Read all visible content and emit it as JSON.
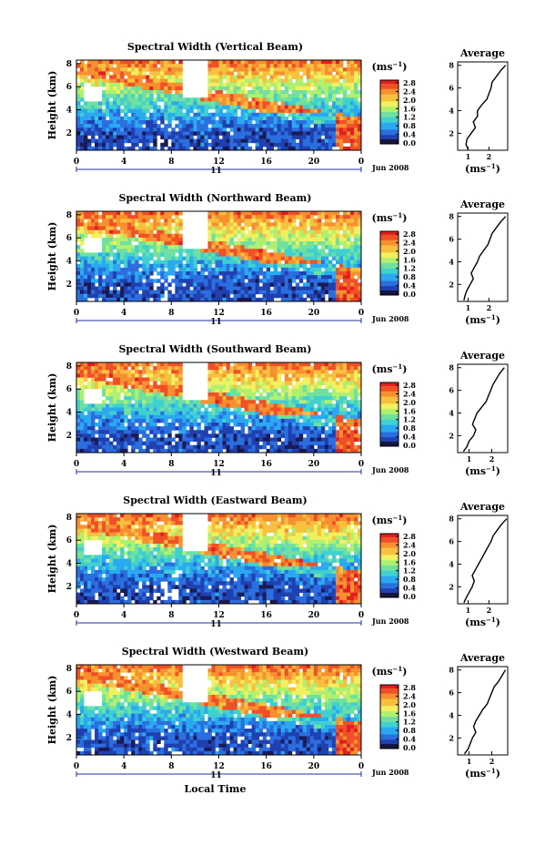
{
  "chart_data": [
    {
      "type": "heatmap",
      "title": "Spectral Width (Vertical Beam)",
      "ylabel": "Height (km)",
      "x_ticks": [
        "0",
        "4",
        "8",
        "12",
        "16",
        "20",
        "0"
      ],
      "y_ticks": [
        "2",
        "4",
        "6",
        "8"
      ],
      "date_marker": "11",
      "date_label": "Jun 2008",
      "xlim": [
        0,
        24
      ],
      "ylim": [
        0.5,
        8.3
      ],
      "colorbar": {
        "unit": "(ms",
        "unit_exp": "−1",
        "unit_close": ")",
        "ticks": [
          "0.0",
          "0.4",
          "0.8",
          "1.2",
          "1.6",
          "2.0",
          "2.4",
          "2.8"
        ]
      },
      "average": {
        "title": "Average",
        "xlabel": "(ms",
        "xlabel_exp": "−1",
        "xlabel_close": ")",
        "x_ticks": [
          "1",
          "2"
        ],
        "y_ticks": [
          "2",
          "4",
          "6",
          "8"
        ],
        "xlim": [
          0.5,
          2.9
        ],
        "ylim": [
          0.5,
          8.3
        ],
        "profile": [
          [
            1.0,
            0.6
          ],
          [
            0.9,
            1.0
          ],
          [
            0.95,
            1.5
          ],
          [
            1.15,
            2.0
          ],
          [
            1.35,
            2.5
          ],
          [
            1.25,
            3.0
          ],
          [
            1.45,
            3.5
          ],
          [
            1.45,
            4.0
          ],
          [
            1.65,
            4.5
          ],
          [
            1.9,
            5.0
          ],
          [
            2.0,
            5.5
          ],
          [
            2.1,
            6.0
          ],
          [
            2.15,
            6.5
          ],
          [
            2.35,
            7.0
          ],
          [
            2.55,
            7.5
          ],
          [
            2.8,
            8.0
          ]
        ]
      }
    },
    {
      "type": "heatmap",
      "title": "Spectral Width (Northward Beam)",
      "ylabel": "Height (km)",
      "x_ticks": [
        "0",
        "4",
        "8",
        "12",
        "16",
        "20",
        "0"
      ],
      "y_ticks": [
        "2",
        "4",
        "6",
        "8"
      ],
      "date_marker": "11",
      "date_label": "Jun 2008",
      "xlim": [
        0,
        24
      ],
      "ylim": [
        0.5,
        8.3
      ],
      "colorbar": {
        "unit": "(ms",
        "unit_exp": "−1",
        "unit_close": ")",
        "ticks": [
          "0.0",
          "0.4",
          "0.8",
          "1.2",
          "1.6",
          "2.0",
          "2.4",
          "2.8"
        ]
      },
      "average": {
        "title": "Average",
        "xlabel": "(ms",
        "xlabel_exp": "−1",
        "xlabel_close": ")",
        "x_ticks": [
          "1",
          "2"
        ],
        "y_ticks": [
          "2",
          "4",
          "6",
          "8"
        ],
        "xlim": [
          0.5,
          2.9
        ],
        "ylim": [
          0.5,
          8.3
        ],
        "profile": [
          [
            0.8,
            0.6
          ],
          [
            0.85,
            1.0
          ],
          [
            0.95,
            1.5
          ],
          [
            1.1,
            2.0
          ],
          [
            1.25,
            2.5
          ],
          [
            1.15,
            3.0
          ],
          [
            1.3,
            3.5
          ],
          [
            1.45,
            4.0
          ],
          [
            1.55,
            4.5
          ],
          [
            1.75,
            5.0
          ],
          [
            1.95,
            5.5
          ],
          [
            2.05,
            6.0
          ],
          [
            2.15,
            6.5
          ],
          [
            2.35,
            7.0
          ],
          [
            2.55,
            7.5
          ],
          [
            2.8,
            8.0
          ]
        ]
      }
    },
    {
      "type": "heatmap",
      "title": "Spectral Width (Southward Beam)",
      "ylabel": "Height (km)",
      "x_ticks": [
        "0",
        "4",
        "8",
        "12",
        "16",
        "20",
        "0"
      ],
      "y_ticks": [
        "2",
        "4",
        "6",
        "8"
      ],
      "date_marker": "11",
      "date_label": "Jun 2008",
      "xlim": [
        0,
        24
      ],
      "ylim": [
        0.5,
        8.3
      ],
      "colorbar": {
        "unit": "(ms",
        "unit_exp": "−1",
        "unit_close": ")",
        "ticks": [
          "0.0",
          "0.4",
          "0.8",
          "1.2",
          "1.6",
          "2.0",
          "2.4",
          "2.8"
        ]
      },
      "average": {
        "title": "Average",
        "xlabel": "(ms",
        "xlabel_exp": "−1",
        "xlabel_close": ")",
        "x_ticks": [
          "1",
          "2"
        ],
        "y_ticks": [
          "2",
          "4",
          "6",
          "8"
        ],
        "xlim": [
          0.5,
          2.7
        ],
        "ylim": [
          0.5,
          8.3
        ],
        "profile": [
          [
            0.75,
            0.6
          ],
          [
            0.9,
            1.0
          ],
          [
            1.0,
            1.5
          ],
          [
            1.2,
            2.0
          ],
          [
            1.3,
            2.5
          ],
          [
            1.15,
            3.0
          ],
          [
            1.25,
            3.5
          ],
          [
            1.35,
            4.0
          ],
          [
            1.55,
            4.5
          ],
          [
            1.75,
            5.0
          ],
          [
            1.85,
            5.5
          ],
          [
            1.95,
            6.0
          ],
          [
            2.05,
            6.5
          ],
          [
            2.2,
            7.0
          ],
          [
            2.35,
            7.5
          ],
          [
            2.55,
            8.0
          ]
        ]
      }
    },
    {
      "type": "heatmap",
      "title": "Spectral Width (Eastward Beam)",
      "ylabel": "Height (km)",
      "x_ticks": [
        "0",
        "4",
        "8",
        "12",
        "16",
        "20",
        "0"
      ],
      "y_ticks": [
        "2",
        "4",
        "6",
        "8"
      ],
      "date_marker": "11",
      "date_label": "Jun 2008",
      "xlim": [
        0,
        24
      ],
      "ylim": [
        0.5,
        8.3
      ],
      "colorbar": {
        "unit": "(ms",
        "unit_exp": "−1",
        "unit_close": ")",
        "ticks": [
          "0.0",
          "0.4",
          "0.8",
          "1.2",
          "1.6",
          "2.0",
          "2.4",
          "2.8"
        ]
      },
      "average": {
        "title": "Average",
        "xlabel": "(ms",
        "xlabel_exp": "−1",
        "xlabel_close": ")",
        "x_ticks": [
          "1",
          "2"
        ],
        "y_ticks": [
          "2",
          "4",
          "6",
          "8"
        ],
        "xlim": [
          0.5,
          2.9
        ],
        "ylim": [
          0.5,
          8.3
        ],
        "profile": [
          [
            0.8,
            0.6
          ],
          [
            0.9,
            1.0
          ],
          [
            1.05,
            1.5
          ],
          [
            1.2,
            2.0
          ],
          [
            1.3,
            2.5
          ],
          [
            1.2,
            3.0
          ],
          [
            1.35,
            3.5
          ],
          [
            1.5,
            4.0
          ],
          [
            1.65,
            4.5
          ],
          [
            1.8,
            5.0
          ],
          [
            1.95,
            5.5
          ],
          [
            2.1,
            6.0
          ],
          [
            2.2,
            6.5
          ],
          [
            2.4,
            7.0
          ],
          [
            2.6,
            7.5
          ],
          [
            2.85,
            8.0
          ]
        ]
      }
    },
    {
      "type": "heatmap",
      "title": "Spectral Width (Westward Beam)",
      "ylabel": "Height (km)",
      "x_ticks": [
        "0",
        "4",
        "8",
        "12",
        "16",
        "20",
        "0"
      ],
      "y_ticks": [
        "2",
        "4",
        "6",
        "8"
      ],
      "date_marker": "11",
      "date_label": "Jun 2008",
      "xlabel": "Local Time",
      "xlim": [
        0,
        24
      ],
      "ylim": [
        0.5,
        8.3
      ],
      "colorbar": {
        "unit": "(ms",
        "unit_exp": "−1",
        "unit_close": ")",
        "ticks": [
          "0.0",
          "0.4",
          "0.8",
          "1.2",
          "1.6",
          "2.0",
          "2.4",
          "2.8"
        ]
      },
      "average": {
        "title": "Average",
        "xlabel": "(ms",
        "xlabel_exp": "−1",
        "xlabel_close": ")",
        "x_ticks": [
          "1",
          "2"
        ],
        "y_ticks": [
          "2",
          "4",
          "6",
          "8"
        ],
        "xlim": [
          0.5,
          2.7
        ],
        "ylim": [
          0.5,
          8.3
        ],
        "profile": [
          [
            0.8,
            0.6
          ],
          [
            0.95,
            1.0
          ],
          [
            1.05,
            1.5
          ],
          [
            1.15,
            2.0
          ],
          [
            1.3,
            2.5
          ],
          [
            1.2,
            3.0
          ],
          [
            1.3,
            3.5
          ],
          [
            1.45,
            4.0
          ],
          [
            1.6,
            4.5
          ],
          [
            1.8,
            5.0
          ],
          [
            1.9,
            5.5
          ],
          [
            2.0,
            6.0
          ],
          [
            2.1,
            6.5
          ],
          [
            2.3,
            7.0
          ],
          [
            2.45,
            7.5
          ],
          [
            2.6,
            8.0
          ]
        ]
      }
    }
  ],
  "colors": {
    "scale": [
      "#1a1a55",
      "#2040b0",
      "#2a6ee0",
      "#2aa8f0",
      "#40d0d0",
      "#70e0a0",
      "#b0f070",
      "#f0f060",
      "#f8c040",
      "#f89030",
      "#f05028",
      "#e02020"
    ]
  }
}
